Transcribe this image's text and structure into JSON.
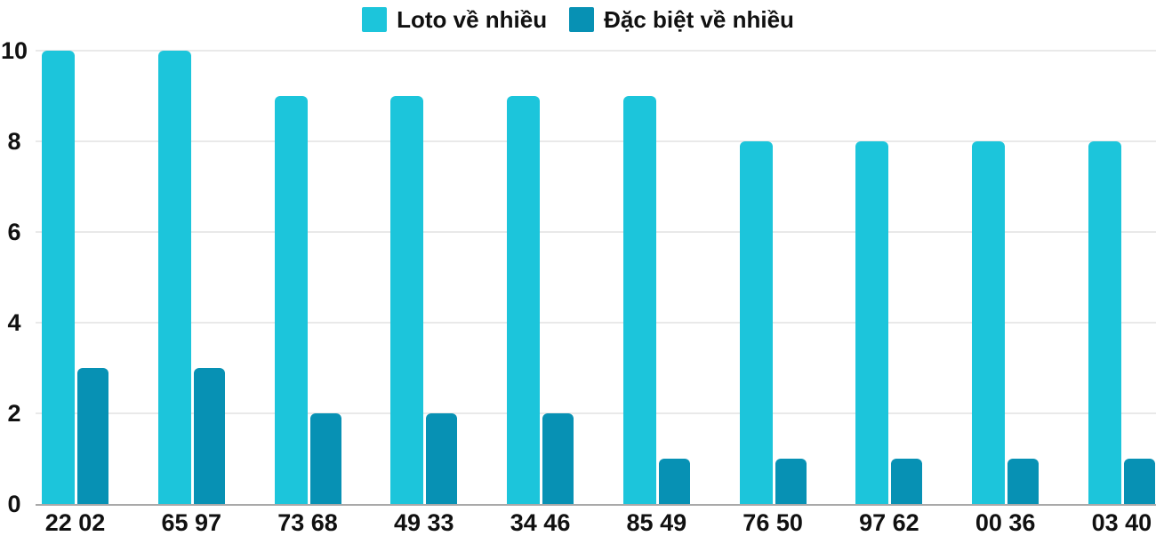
{
  "chart_data": {
    "type": "bar",
    "categories": [
      "22 02",
      "65 97",
      "73 68",
      "49 33",
      "34 46",
      "85 49",
      "76 50",
      "97 62",
      "00 36",
      "03 40"
    ],
    "series": [
      {
        "name": "Loto về nhiều",
        "color": "#1CC5DB",
        "values": [
          10,
          10,
          9,
          9,
          9,
          9,
          8,
          8,
          8,
          8
        ]
      },
      {
        "name": "Đặc biệt về nhiều",
        "color": "#0791B4",
        "values": [
          3,
          3,
          2,
          2,
          2,
          1,
          1,
          1,
          1,
          1
        ]
      }
    ],
    "title": "",
    "xlabel": "",
    "ylabel": "",
    "yticks": [
      0,
      2,
      4,
      6,
      8,
      10
    ],
    "ylim": [
      0,
      10
    ],
    "grid": true,
    "legend_position": "top",
    "colors": {
      "grid_line": "#E9E9E9",
      "axis_line": "#A9A9A9",
      "text": "#111111",
      "background": "#FFFFFF"
    }
  }
}
